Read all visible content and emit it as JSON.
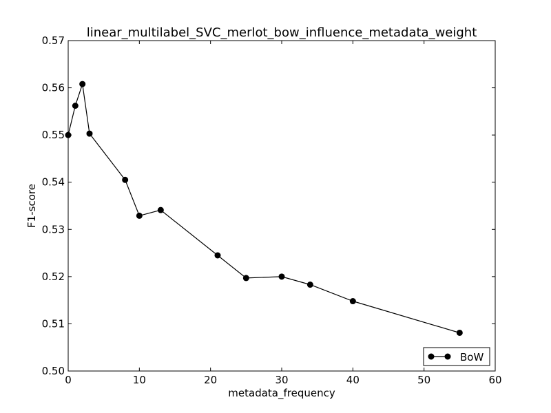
{
  "chart_data": {
    "type": "line",
    "title": "linear_multilabel_SVC_merlot_bow_influence_metadata_weight",
    "xlabel": "metadata_frequency",
    "ylabel": "F1-score",
    "xlim": [
      0,
      60
    ],
    "ylim": [
      0.5,
      0.57
    ],
    "xticks": [
      "0",
      "10",
      "20",
      "30",
      "40",
      "50",
      "60"
    ],
    "yticks": [
      "0.50",
      "0.51",
      "0.52",
      "0.53",
      "0.54",
      "0.55",
      "0.56",
      "0.57"
    ],
    "grid": false,
    "legend_position": "lower-right",
    "series": [
      {
        "name": "BoW",
        "color": "#000000",
        "marker": "circle",
        "x": [
          0,
          1,
          2,
          3,
          8,
          10,
          13,
          21,
          25,
          30,
          34,
          40,
          55
        ],
        "y": [
          0.55,
          0.5562,
          0.5608,
          0.5503,
          0.5405,
          0.5329,
          0.5341,
          0.5245,
          0.5197,
          0.52,
          0.5183,
          0.5148,
          0.5081
        ]
      }
    ]
  }
}
